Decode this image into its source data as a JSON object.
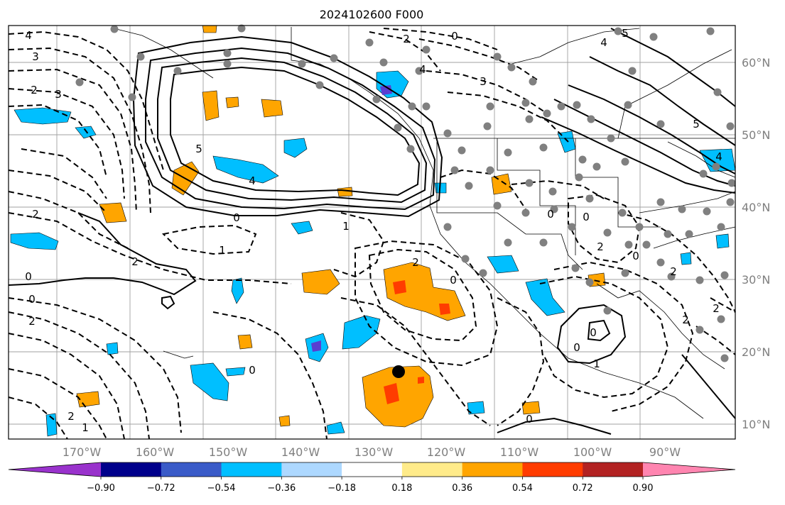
{
  "title": "2024102600 F000",
  "lon_labels": [
    "170°W",
    "160°W",
    "150°W",
    "140°W",
    "130°W",
    "120°W",
    "110°W",
    "100°W",
    "90°W"
  ],
  "lat_labels": [
    "60°N",
    "50°N",
    "40°N",
    "30°N",
    "20°N",
    "10°N"
  ],
  "colorbar": {
    "colors": [
      "#9932cc",
      "#00008b",
      "#3a5bc8",
      "#00bfff",
      "#add8ff",
      "#ffffff",
      "#ffeb8a",
      "#ffa500",
      "#ff3c00",
      "#b22222",
      "#ff85b0"
    ],
    "tick_labels": [
      "−0.90",
      "−0.72",
      "−0.54",
      "−0.36",
      "−0.18",
      "0.18",
      "0.36",
      "0.54",
      "0.72",
      "0.90"
    ]
  },
  "contour_labels": [
    "4",
    "3",
    "3",
    "2",
    "5",
    "4",
    "2",
    "0",
    "1",
    "1",
    "0",
    "0",
    "2",
    "2",
    "1",
    "0",
    "2",
    "2",
    "0",
    "1",
    "0",
    "0",
    "2",
    "4",
    "2",
    "3",
    "4",
    "5",
    "5",
    "4",
    "0",
    "0",
    "0",
    "2",
    "0",
    "2",
    "0",
    "2"
  ],
  "colors": {
    "station_dots": "#808080",
    "marker": "#000000",
    "axis_text": "#7f7f7f"
  }
}
